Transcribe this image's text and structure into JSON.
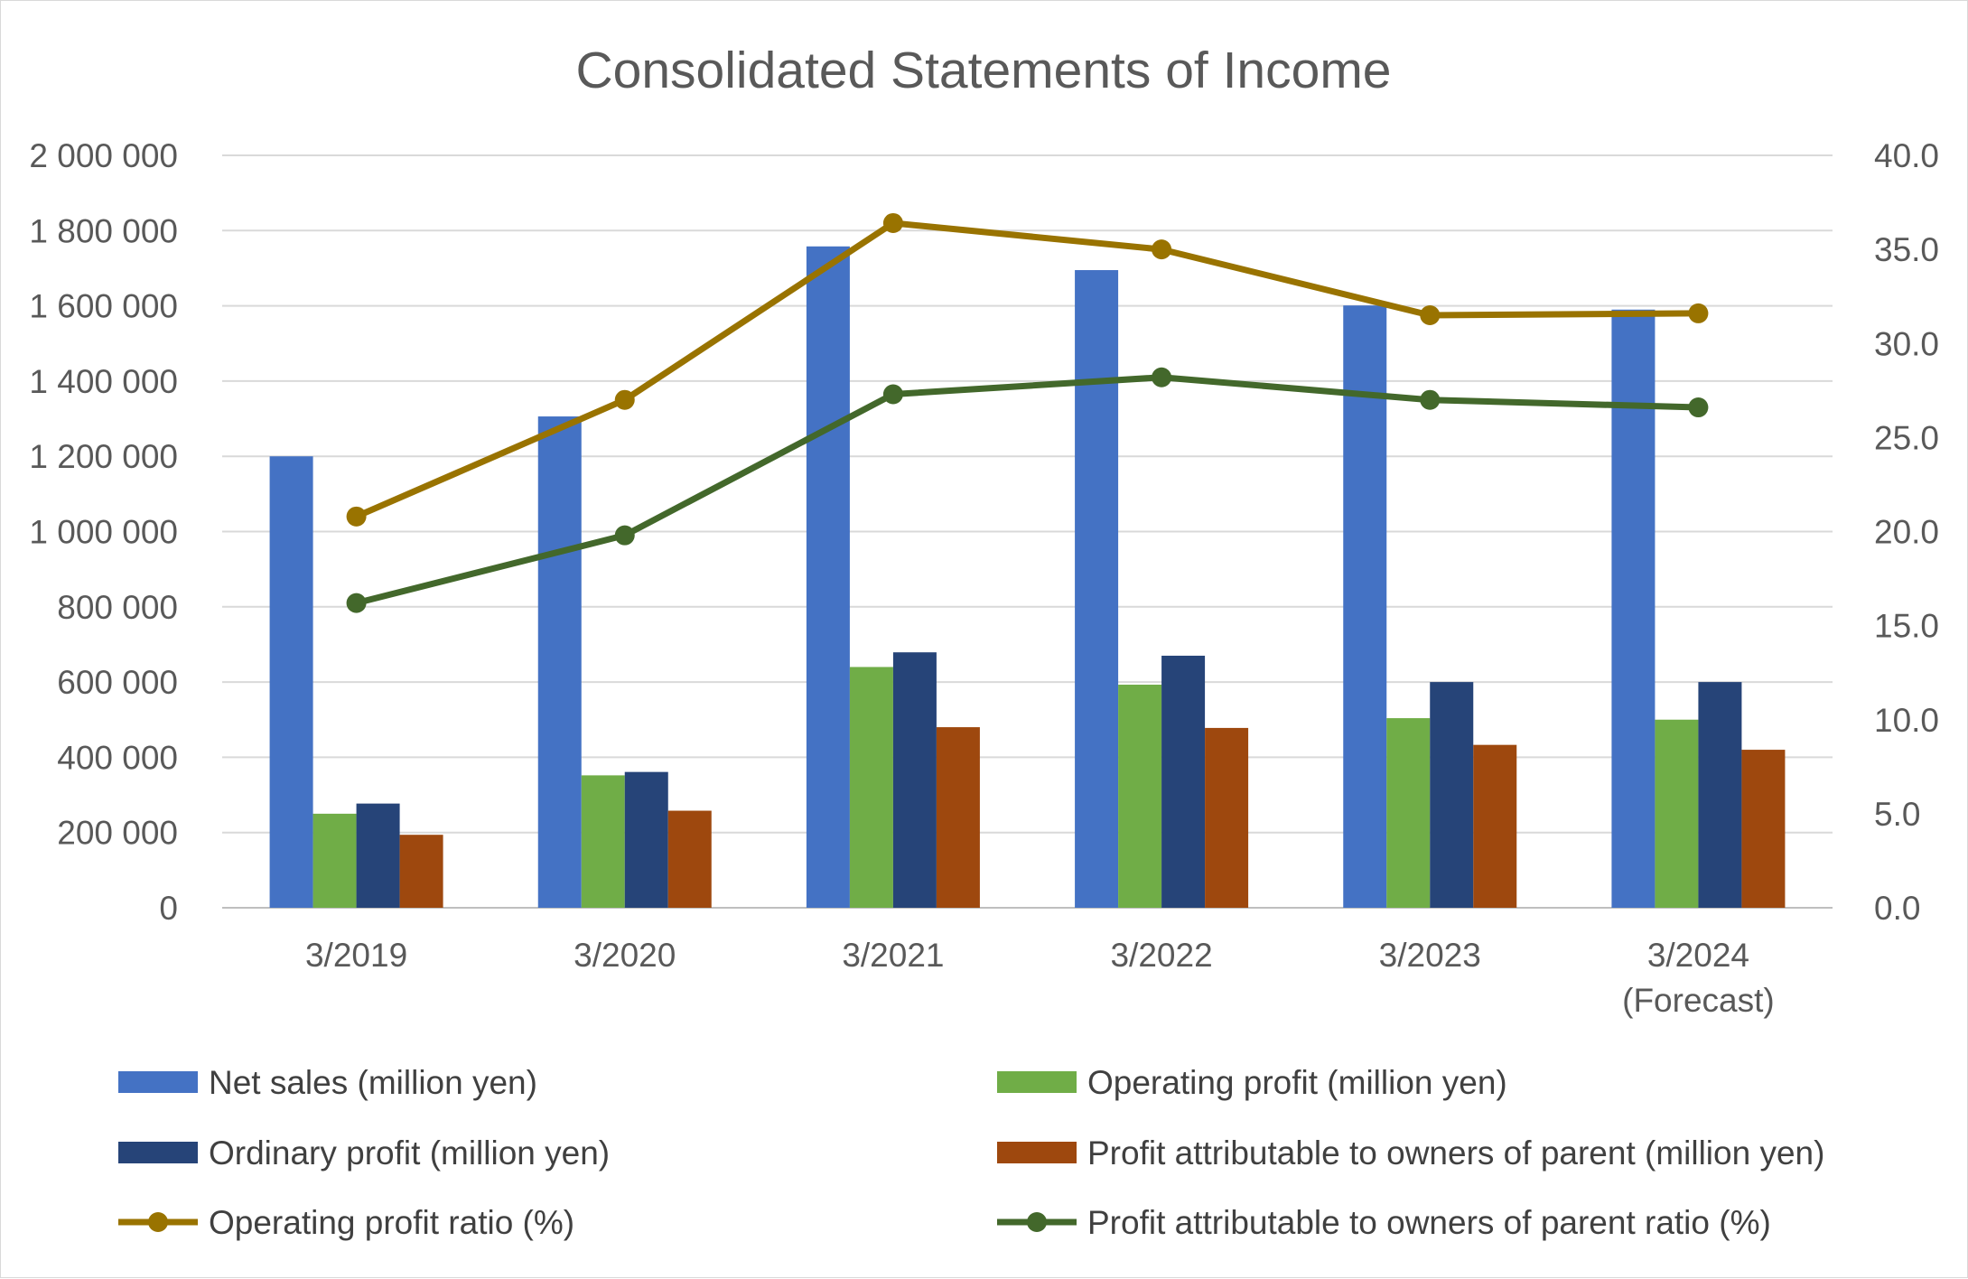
{
  "chart_data": {
    "type": "bar",
    "title": "Consolidated Statements of Income",
    "categories": [
      [
        "3/2019"
      ],
      [
        "3/2020"
      ],
      [
        "3/2021"
      ],
      [
        "3/2022"
      ],
      [
        "3/2023"
      ],
      [
        "3/2024",
        "(Forecast)"
      ]
    ],
    "y_left": {
      "min": 0,
      "max": 2000000,
      "step": 200000,
      "tick_labels": [
        "0",
        "200 000",
        "400 000",
        "600 000",
        "800 000",
        "1 000 000",
        "1 200 000",
        "1 400 000",
        "1 600 000",
        "1 800 000",
        "2 000 000"
      ]
    },
    "y_right": {
      "min": 0,
      "max": 40,
      "step": 5,
      "tick_labels": [
        "0.0",
        "5.0",
        "10.0",
        "15.0",
        "20.0",
        "25.0",
        "30.0",
        "35.0",
        "40.0"
      ]
    },
    "grid": true,
    "legend_position": "bottom",
    "bar_series": [
      {
        "name": "Net sales (million yen)",
        "color": "#4472c4",
        "values": [
          1200000,
          1306000,
          1758000,
          1695000,
          1601000,
          1590000
        ]
      },
      {
        "name": "Operating profit (million yen)",
        "color": "#70ad47",
        "values": [
          250000,
          352000,
          640000,
          593000,
          504000,
          500000
        ]
      },
      {
        "name": "Ordinary profit (million yen)",
        "color": "#264478",
        "values": [
          277000,
          361000,
          679000,
          670000,
          600000,
          600000
        ]
      },
      {
        "name": "Profit attributable to owners of parent (million yen)",
        "color": "#9e480e",
        "values": [
          194000,
          258000,
          480000,
          478000,
          433000,
          420000
        ]
      }
    ],
    "line_series": [
      {
        "name": "Operating profit ratio (%)",
        "color": "#997300",
        "axis": "right",
        "values": [
          20.8,
          27.0,
          36.4,
          35.0,
          31.5,
          31.6
        ]
      },
      {
        "name": "Profit attributable to owners of parent ratio (%)",
        "color": "#43682b",
        "axis": "right",
        "values": [
          16.2,
          19.8,
          27.3,
          28.2,
          27.0,
          26.6
        ]
      }
    ]
  }
}
